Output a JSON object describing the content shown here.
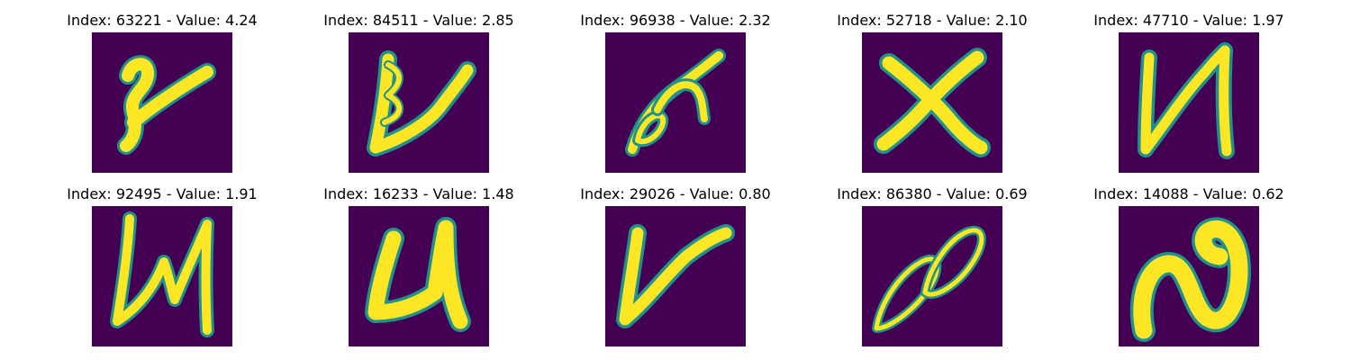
{
  "panels": [
    {
      "title": "Index: 63221 - Value: 4.24"
    },
    {
      "title": "Index: 84511 - Value: 2.85"
    },
    {
      "title": "Index: 96938 - Value: 2.32"
    },
    {
      "title": "Index: 52718 - Value: 2.10"
    },
    {
      "title": "Index: 47710 - Value: 1.97"
    },
    {
      "title": "Index: 92495 - Value: 1.91"
    },
    {
      "title": "Index: 16233 - Value: 1.48"
    },
    {
      "title": "Index: 29026 - Value: 0.80"
    },
    {
      "title": "Index: 86380 - Value: 0.69"
    },
    {
      "title": "Index: 14088 - Value: 0.62"
    }
  ],
  "colors": {
    "background": "#440154",
    "edge": "#21918c",
    "mid": "#5ec962",
    "stroke": "#fde725"
  }
}
